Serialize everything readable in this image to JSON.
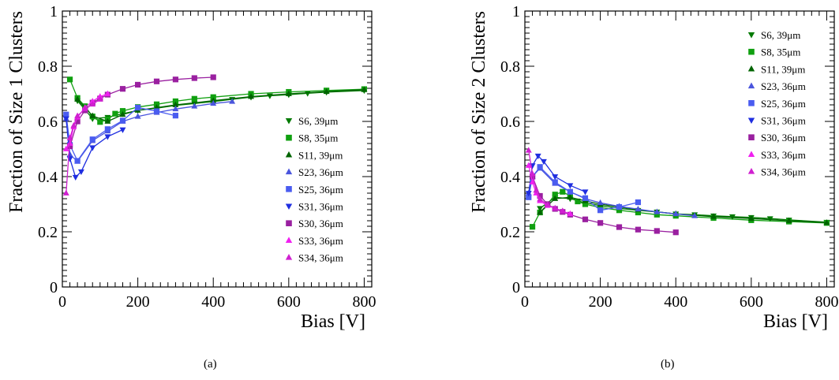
{
  "colors": {
    "S6": "#007a00",
    "S8": "#10a010",
    "S11": "#006400",
    "S23": "#4a55dd",
    "S25": "#4a5cf0",
    "S31": "#1f2ee0",
    "S30": "#9a20a0",
    "S33": "#f020f0",
    "S34": "#d020d0"
  },
  "series_style": {
    "S6": {
      "marker": "triangle-down",
      "color": "#007a00",
      "legend": "S6, 39μm"
    },
    "S8": {
      "marker": "square",
      "color": "#10a010",
      "legend": "S8, 35μm"
    },
    "S11": {
      "marker": "triangle-up",
      "color": "#006400",
      "legend": "S11, 39μm"
    },
    "S23": {
      "marker": "triangle-up",
      "color": "#4a55dd",
      "legend": "S23, 36μm"
    },
    "S25": {
      "marker": "square",
      "color": "#4a5cf0",
      "legend": "S25, 36μm"
    },
    "S31": {
      "marker": "triangle-down",
      "color": "#1f2ee0",
      "legend": "S31, 36μm"
    },
    "S30": {
      "marker": "square",
      "color": "#9a20a0",
      "legend": "S30, 36μm"
    },
    "S33": {
      "marker": "triangle-up",
      "color": "#f020f0",
      "legend": "S33, 36μm"
    },
    "S34": {
      "marker": "triangle-up",
      "color": "#d020d0",
      "legend": "S34, 36μm"
    }
  },
  "chart_data": [
    {
      "type": "line",
      "caption": "(a)",
      "xlabel": "Bias [V]",
      "ylabel": "Fraction of Size 1 Clusters",
      "xlim": [
        0,
        820
      ],
      "ylim": [
        0,
        1
      ],
      "xticks": [
        "0",
        "200",
        "400",
        "600",
        "800"
      ],
      "yticks": [
        "0",
        "0.2",
        "0.4",
        "0.6",
        "0.8",
        "1"
      ],
      "legend_position": "right",
      "legend": [
        "S6, 39μm",
        "S8, 35μm",
        "S11, 39μm",
        "S23, 36μm",
        "S25, 36μm",
        "S31, 36μm",
        "S30, 36μm",
        "S33, 36μm",
        "S34, 36μm"
      ],
      "series": [
        {
          "name": "S6",
          "x": [
            40,
            80,
            120,
            160,
            200,
            250,
            300,
            350,
            400,
            450,
            500,
            550,
            600,
            650,
            700,
            800
          ],
          "y": [
            0.675,
            0.61,
            0.615,
            0.628,
            0.64,
            0.648,
            0.658,
            0.665,
            0.672,
            0.68,
            0.688,
            0.693,
            0.697,
            0.702,
            0.706,
            0.712
          ]
        },
        {
          "name": "S8",
          "x": [
            20,
            40,
            60,
            80,
            100,
            120,
            140,
            160,
            200,
            250,
            300,
            350,
            400,
            500,
            600,
            700,
            800
          ],
          "y": [
            0.752,
            0.685,
            0.655,
            0.618,
            0.598,
            0.607,
            0.628,
            0.638,
            0.652,
            0.662,
            0.673,
            0.682,
            0.688,
            0.7,
            0.707,
            0.712,
            0.717
          ]
        },
        {
          "name": "S11",
          "x": [
            40,
            80,
            120,
            160,
            200,
            250,
            300,
            400,
            500,
            600,
            700,
            800
          ],
          "y": [
            0.68,
            0.62,
            0.6,
            0.625,
            0.64,
            0.65,
            0.66,
            0.675,
            0.69,
            0.7,
            0.708,
            0.715
          ]
        },
        {
          "name": "S23",
          "x": [
            10,
            20,
            40,
            80,
            120,
            160,
            200,
            250,
            300,
            350,
            400,
            450
          ],
          "y": [
            0.61,
            0.48,
            0.455,
            0.53,
            0.565,
            0.6,
            0.618,
            0.632,
            0.645,
            0.655,
            0.665,
            0.672
          ]
        },
        {
          "name": "S25",
          "x": [
            10,
            20,
            40,
            80,
            120,
            160,
            200,
            250,
            300
          ],
          "y": [
            0.625,
            0.515,
            0.457,
            0.535,
            0.572,
            0.603,
            0.65,
            0.637,
            0.621
          ]
        },
        {
          "name": "S31",
          "x": [
            10,
            20,
            35,
            50,
            80,
            120,
            160
          ],
          "y": [
            0.61,
            0.465,
            0.398,
            0.418,
            0.505,
            0.545,
            0.57
          ]
        },
        {
          "name": "S30",
          "x": [
            20,
            40,
            60,
            80,
            100,
            120,
            160,
            200,
            250,
            300,
            350,
            400
          ],
          "y": [
            0.51,
            0.6,
            0.64,
            0.668,
            0.683,
            0.697,
            0.718,
            0.733,
            0.745,
            0.752,
            0.757,
            0.76
          ]
        },
        {
          "name": "S33",
          "x": [
            10,
            20,
            30,
            40,
            60,
            80,
            100,
            120
          ],
          "y": [
            0.5,
            0.52,
            0.58,
            0.615,
            0.65,
            0.673,
            0.69,
            0.7
          ]
        },
        {
          "name": "S34",
          "x": [
            10,
            20,
            30,
            40,
            60,
            80,
            100
          ],
          "y": [
            0.34,
            0.54,
            0.585,
            0.62,
            0.645,
            0.662,
            0.68
          ]
        }
      ]
    },
    {
      "type": "line",
      "caption": "(b)",
      "xlabel": "Bias [V]",
      "ylabel": "Fraction of Size 2 Clusters",
      "xlim": [
        0,
        820
      ],
      "ylim": [
        0,
        1
      ],
      "xticks": [
        "0",
        "200",
        "400",
        "600",
        "800"
      ],
      "yticks": [
        "0",
        "0.2",
        "0.4",
        "0.6",
        "0.8",
        "1"
      ],
      "legend_position": "top-right",
      "legend": [
        "S6, 39μm",
        "S8, 35μm",
        "S11, 39μm",
        "S23, 36μm",
        "S25, 36μm",
        "S31, 36μm",
        "S30, 36μm",
        "S33, 36μm",
        "S34, 36μm"
      ],
      "series": [
        {
          "name": "S6",
          "x": [
            40,
            80,
            120,
            160,
            200,
            250,
            300,
            350,
            400,
            450,
            500,
            550,
            600,
            650,
            700,
            800
          ],
          "y": [
            0.285,
            0.325,
            0.32,
            0.305,
            0.295,
            0.285,
            0.278,
            0.272,
            0.265,
            0.262,
            0.258,
            0.255,
            0.252,
            0.248,
            0.243,
            0.235
          ]
        },
        {
          "name": "S8",
          "x": [
            20,
            40,
            60,
            80,
            100,
            120,
            140,
            160,
            200,
            250,
            300,
            350,
            400,
            500,
            600,
            700,
            800
          ],
          "y": [
            0.218,
            0.27,
            0.3,
            0.335,
            0.345,
            0.33,
            0.31,
            0.3,
            0.288,
            0.278,
            0.27,
            0.262,
            0.258,
            0.25,
            0.242,
            0.237,
            0.232
          ]
        },
        {
          "name": "S11",
          "x": [
            40,
            80,
            120,
            160,
            200,
            250,
            300,
            400,
            500,
            600,
            700,
            800
          ],
          "y": [
            0.27,
            0.32,
            0.325,
            0.312,
            0.3,
            0.29,
            0.28,
            0.265,
            0.255,
            0.248,
            0.24,
            0.233
          ]
        },
        {
          "name": "S23",
          "x": [
            10,
            20,
            40,
            80,
            120,
            160,
            200,
            250,
            300,
            350,
            400,
            450
          ],
          "y": [
            0.34,
            0.4,
            0.43,
            0.375,
            0.345,
            0.32,
            0.305,
            0.292,
            0.282,
            0.272,
            0.265,
            0.258
          ]
        },
        {
          "name": "S25",
          "x": [
            10,
            20,
            40,
            80,
            120,
            160,
            200,
            250,
            300
          ],
          "y": [
            0.325,
            0.4,
            0.435,
            0.38,
            0.345,
            0.322,
            0.278,
            0.29,
            0.307
          ]
        },
        {
          "name": "S31",
          "x": [
            10,
            20,
            35,
            50,
            80,
            120,
            160
          ],
          "y": [
            0.34,
            0.44,
            0.475,
            0.455,
            0.4,
            0.368,
            0.345
          ]
        },
        {
          "name": "S30",
          "x": [
            20,
            40,
            60,
            80,
            100,
            120,
            160,
            200,
            250,
            300,
            350,
            400
          ],
          "y": [
            0.4,
            0.33,
            0.3,
            0.283,
            0.272,
            0.262,
            0.245,
            0.232,
            0.217,
            0.208,
            0.203,
            0.198
          ]
        },
        {
          "name": "S33",
          "x": [
            10,
            20,
            30,
            40,
            60,
            80,
            100,
            120
          ],
          "y": [
            0.44,
            0.38,
            0.34,
            0.312,
            0.295,
            0.285,
            0.275,
            0.265
          ]
        },
        {
          "name": "S34",
          "x": [
            10,
            20,
            30,
            40,
            60,
            80,
            100
          ],
          "y": [
            0.495,
            0.41,
            0.35,
            0.318,
            0.298,
            0.285,
            0.275
          ]
        }
      ]
    }
  ]
}
